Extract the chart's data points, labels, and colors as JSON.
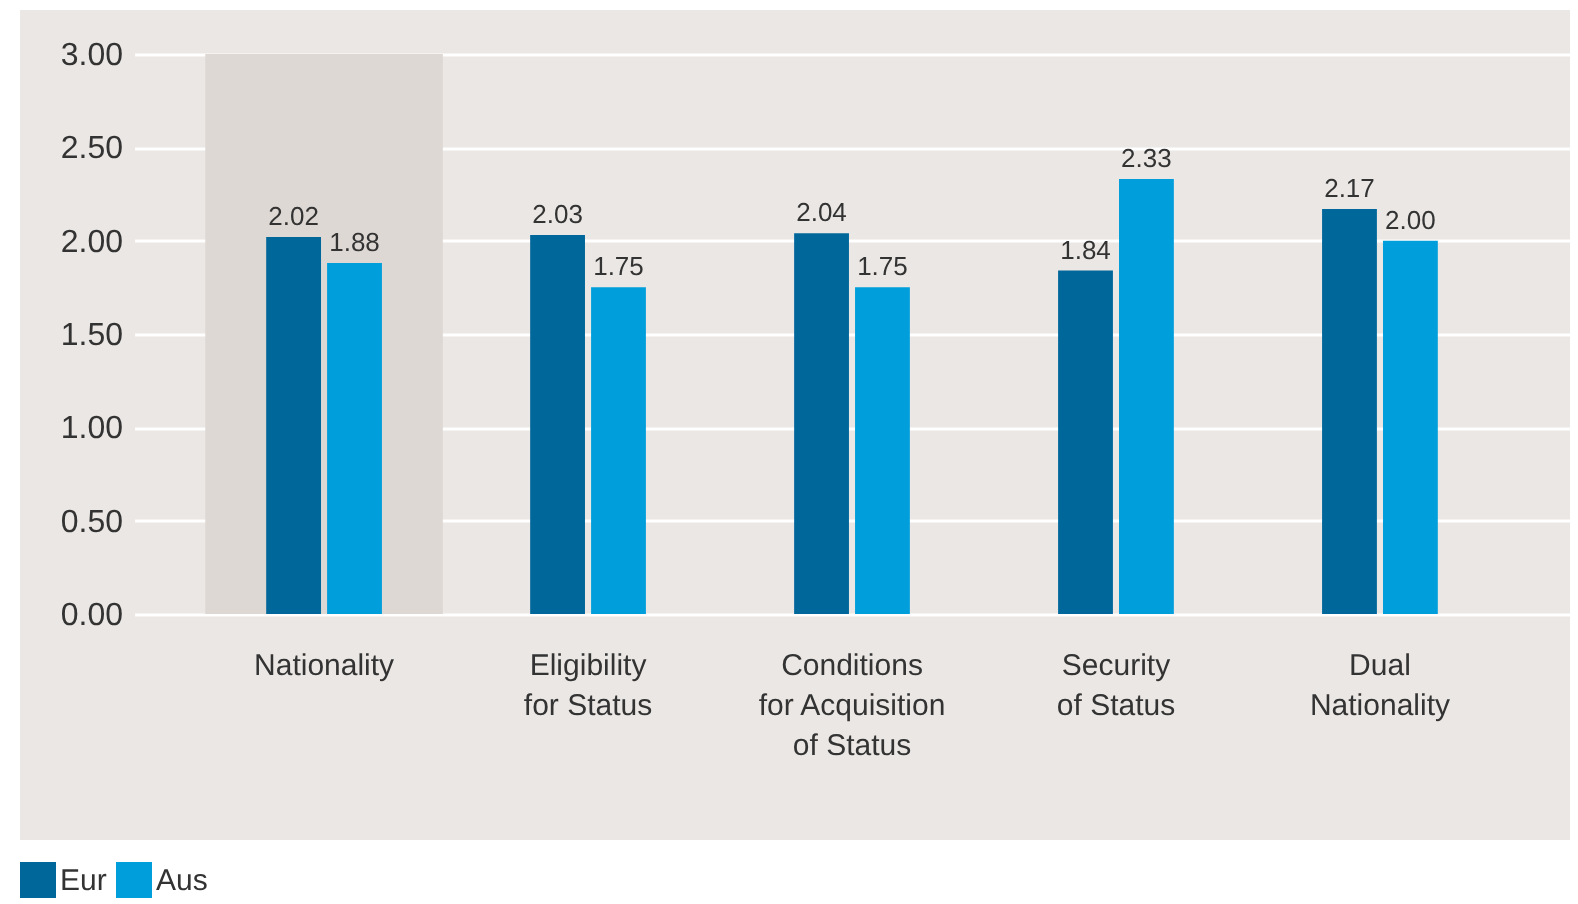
{
  "chart_data": {
    "type": "bar",
    "categories": [
      "Nationality",
      "Eligibility for Status",
      "Conditions for Acquisition of Status",
      "Security of Status",
      "Dual Nationality"
    ],
    "series": [
      {
        "name": "Eur",
        "color": "#00679b",
        "values": [
          2.02,
          2.03,
          2.04,
          1.84,
          2.17
        ],
        "value_labels": [
          "2.02",
          "2.03",
          "2.04",
          "1.84",
          "2.17"
        ]
      },
      {
        "name": "Aus",
        "color": "#009edb",
        "values": [
          1.88,
          1.75,
          1.75,
          2.33,
          2.0
        ],
        "value_labels": [
          "1.88",
          "1.75",
          "1.75",
          "2.33",
          "2.00"
        ]
      }
    ],
    "ylim": [
      0,
      3
    ],
    "yticks": [
      {
        "value": 0,
        "label": "0.00"
      },
      {
        "value": 0.5,
        "label": "0.50"
      },
      {
        "value": 1,
        "label": "1.00"
      },
      {
        "value": 1.5,
        "label": "1.50"
      },
      {
        "value": 2,
        "label": "2.00"
      },
      {
        "value": 2.5,
        "label": "2.50"
      },
      {
        "value": 3,
        "label": "3.00"
      }
    ],
    "bands": [
      {
        "axis": "x",
        "from": "Nationality",
        "to": "Nationality",
        "color": "#ddd8d4"
      }
    ],
    "grid": "y",
    "legend": "bottom left"
  }
}
